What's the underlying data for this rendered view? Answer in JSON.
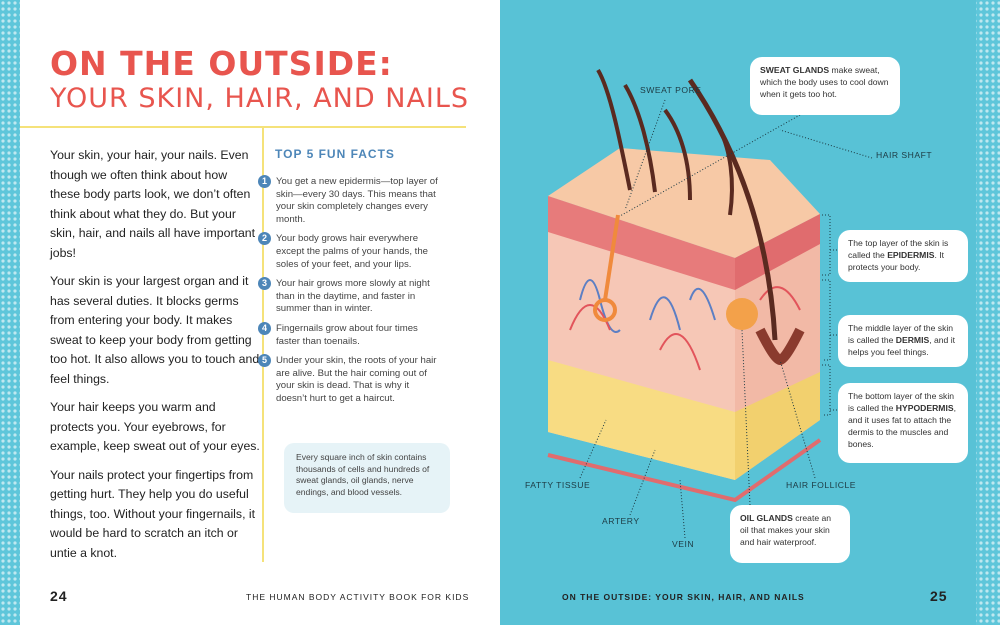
{
  "left_page": {
    "title_line1": "ON THE OUTSIDE:",
    "title_line2": "YOUR SKIN, HAIR, AND NAILS",
    "paragraphs": [
      "Your skin, your hair, your nails. Even though we often think about how these body parts look, we don’t often think about what they do. But your skin, hair, and nails all have important jobs!",
      "Your skin is your largest organ and it has several duties. It blocks germs from entering your body. It makes sweat to keep your body from getting too hot. It also allows you to touch and feel things.",
      "Your hair keeps you warm and protects you. Your eyebrows, for example, keep sweat out of your eyes.",
      "Your nails protect your fingertips from getting hurt. They help you do useful things, too. Without your fingernails, it would be hard to scratch an itch or untie a knot."
    ],
    "fun_facts": {
      "heading": "TOP 5 FUN FACTS",
      "items": [
        {
          "number": 1,
          "text": "You get a new epidermis—top layer of skin—every 30 days. This means that your skin completely changes every month."
        },
        {
          "number": 2,
          "text": "Your body grows hair everywhere except the palms of your hands, the soles of your feet, and your lips."
        },
        {
          "number": 3,
          "text": "Your hair grows more slowly at night than in the daytime, and faster in summer than in winter."
        },
        {
          "number": 4,
          "text": "Fingernails grow about four times faster than toenails."
        },
        {
          "number": 5,
          "text": "Under your skin, the roots of your hair are alive. But the hair coming out of your skin is dead. That is why it doesn’t hurt to get a haircut."
        }
      ],
      "note": "Every square inch of skin contains thousands of cells and hundreds of sweat glands, oil glands, nerve endings, and blood vessels."
    },
    "page_number": "24",
    "book_title": "THE HUMAN BODY ACTIVITY BOOK FOR KIDS"
  },
  "right_page": {
    "labels": {
      "sweat_pore": "SWEAT PORE",
      "hair_shaft": "HAIR SHAFT",
      "fatty_tissue": "FATTY TISSUE",
      "hair_follicle": "HAIR FOLLICLE",
      "artery": "ARTERY",
      "vein": "VEIN"
    },
    "callouts": {
      "sweat_glands": {
        "bold": "SWEAT GLANDS",
        "text": " make sweat, which the body uses to cool down when it gets too hot."
      },
      "epidermis": {
        "before": "The top layer of the skin is called the ",
        "bold": "EPIDERMIS",
        "after": ". It protects your body."
      },
      "dermis": {
        "before": "The middle layer of the skin is called the ",
        "bold": "DERMIS",
        "after": ", and it helps you feel things."
      },
      "hypodermis": {
        "before": "The bottom layer of the skin is called the ",
        "bold": "HYPODERMIS",
        "after": ", and it uses fat to attach the dermis to the muscles and bones."
      },
      "oil_glands": {
        "bold": "OIL GLANDS",
        "text": " create an oil that makes your skin and hair waterproof."
      }
    },
    "running_head": "ON THE OUTSIDE: YOUR SKIN, HAIR, AND NAILS",
    "page_number": "25"
  }
}
